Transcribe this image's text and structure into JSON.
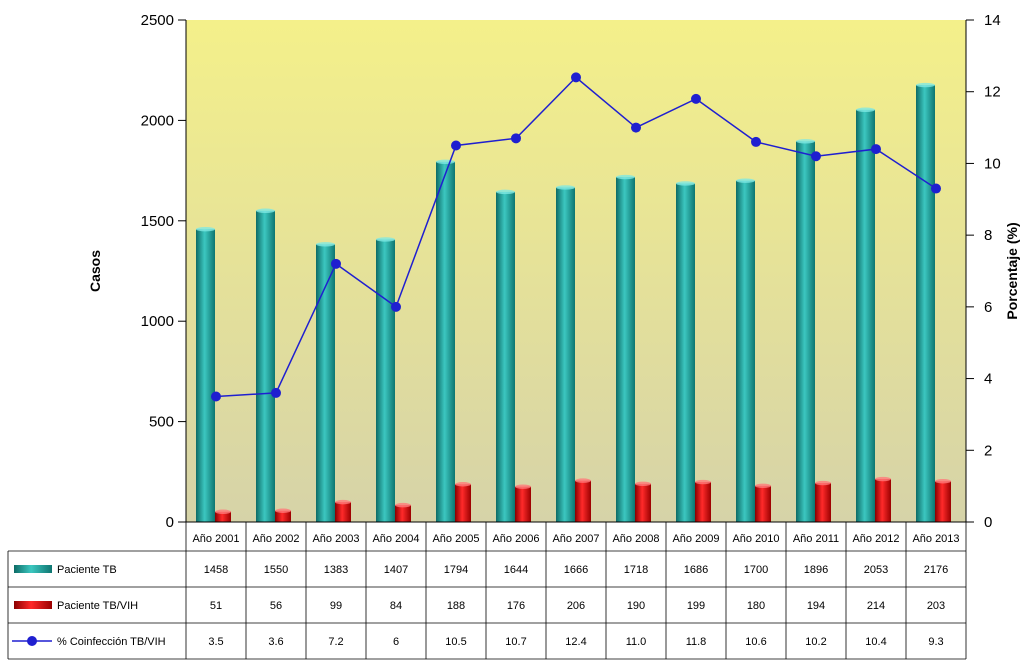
{
  "chart_data": {
    "type": "bar",
    "categories": [
      "Año 2001",
      "Año 2002",
      "Año 2003",
      "Año 2004",
      "Año 2005",
      "Año 2006",
      "Año 2007",
      "Año 2008",
      "Año 2009",
      "Año 2010",
      "Año 2011",
      "Año 2012",
      "Año 2013"
    ],
    "series": [
      {
        "name": "Paciente TB",
        "type": "bar",
        "axis": "left",
        "color": "#1a9c96",
        "values": [
          1458,
          1550,
          1383,
          1407,
          1794,
          1644,
          1666,
          1718,
          1686,
          1700,
          1896,
          2053,
          2176
        ],
        "labels": [
          "1458",
          "1550",
          "1383",
          "1407",
          "1794",
          "1644",
          "1666",
          "1718",
          "1686",
          "1700",
          "1896",
          "2053",
          "2176"
        ]
      },
      {
        "name": "Paciente TB/VIH",
        "type": "bar",
        "axis": "left",
        "color": "#d40000",
        "values": [
          51,
          56,
          99,
          84,
          188,
          176,
          206,
          190,
          199,
          180,
          194,
          214,
          203
        ],
        "labels": [
          "51",
          "56",
          "99",
          "84",
          "188",
          "176",
          "206",
          "190",
          "199",
          "180",
          "194",
          "214",
          "203"
        ]
      },
      {
        "name": "% Coinfección TB/VIH",
        "type": "line",
        "axis": "right",
        "color": "#1f1fd0",
        "values": [
          3.5,
          3.6,
          7.2,
          6,
          10.5,
          10.7,
          12.4,
          11.0,
          11.8,
          10.6,
          10.2,
          10.4,
          9.3
        ],
        "labels": [
          "3.5",
          "3.6",
          "7.2",
          "6",
          "10.5",
          "10.7",
          "12.4",
          "11.0",
          "11.8",
          "10.6",
          "10.2",
          "10.4",
          "9.3"
        ]
      }
    ],
    "ylabel": "Casos",
    "ylabel_right": "Porcentaje (%)",
    "ylim": [
      0,
      2500
    ],
    "yticks": [
      0,
      500,
      1000,
      1500,
      2000,
      2500
    ],
    "ylim_right": [
      0,
      14
    ],
    "yticks_right": [
      0,
      2,
      4,
      6,
      8,
      10,
      12,
      14
    ],
    "data_table": true,
    "colors": {
      "plot_bg_top": "#f4f08a",
      "plot_bg_bottom": "#d6d3a8"
    }
  }
}
